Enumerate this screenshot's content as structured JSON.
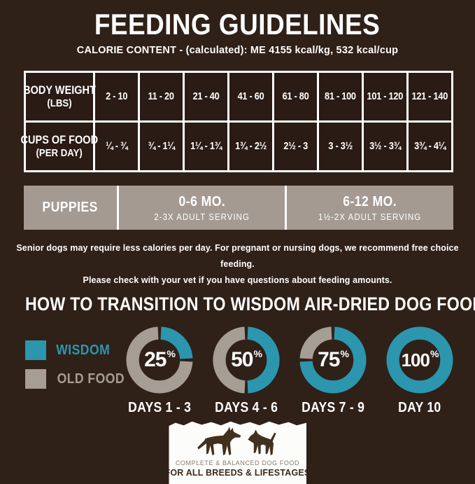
{
  "colors": {
    "background": "#2f2018",
    "table_cell": "#2a1b14",
    "bar_gray": "#a49a92",
    "wisdom_teal": "#2b96ae",
    "old_food_gray": "#a69d95",
    "border_white": "#ffffff",
    "label_paper": "#fcfcfa",
    "label_text_dark": "#3b2a1e",
    "label_text_light": "#8a7b6d"
  },
  "header": {
    "title": "FEEDING GUIDELINES",
    "subtitle": "CALORIE CONTENT - (calculated): ME 4155 kcal/kg, 532 kcal/cup"
  },
  "feeding_table": {
    "row_headers": [
      {
        "line1": "BODY WEIGHT",
        "line2": "(LBS)"
      },
      {
        "line1": "CUPS OF FOOD",
        "line2": "(PER DAY)"
      }
    ],
    "weights": [
      "2 - 10",
      "11 - 20",
      "21 - 40",
      "41 - 60",
      "61 - 80",
      "81 - 100",
      "101 - 120",
      "121 - 140"
    ],
    "cups": [
      "¼ - ¾",
      "¾ - 1¼",
      "1¼ - 1¾",
      "1¾ - 2½",
      "2½ - 3",
      "3 - 3½",
      "3½ - 3¾",
      "3¾ - 4¼"
    ]
  },
  "puppies": {
    "label": "PUPPIES",
    "cols": [
      {
        "title": "0-6 MO.",
        "subtitle": "2-3X ADULT SERVING"
      },
      {
        "title": "6-12 MO.",
        "subtitle": "1½-2X ADULT SERVING"
      }
    ]
  },
  "notes": {
    "line1": "Senior dogs may require less calories per day. For pregnant or nursing dogs, we recommend free choice feeding.",
    "line2": "Please check with your vet if you have questions about feeding amounts."
  },
  "chart_data": {
    "type": "pie",
    "title": "HOW TO TRANSITION TO WISDOM AIR-DRIED DOG FOOD",
    "legend_position": "left",
    "percent_suffix": "%",
    "legend": [
      {
        "name": "WISDOM",
        "color": "#2b96ae"
      },
      {
        "name": "OLD FOOD",
        "color": "#a69d95"
      }
    ],
    "donuts": [
      {
        "wisdom_pct": 25,
        "old_food_pct": 75,
        "label": "DAYS 1 - 3"
      },
      {
        "wisdom_pct": 50,
        "old_food_pct": 50,
        "label": "DAYS 4 - 6"
      },
      {
        "wisdom_pct": 75,
        "old_food_pct": 25,
        "label": "DAYS 7 - 9"
      },
      {
        "wisdom_pct": 100,
        "old_food_pct": 0,
        "label": "DAY 10"
      }
    ]
  },
  "footer_label": {
    "line1": "COMPLETE & BALANCED DOG FOOD",
    "line2": "FOR ALL BREEDS & LIFESTAGES"
  }
}
